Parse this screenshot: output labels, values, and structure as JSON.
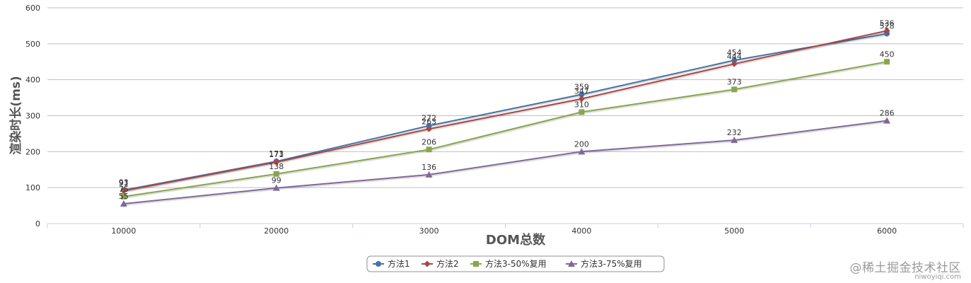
{
  "chart_data": {
    "type": "line",
    "xlabel": "DOM总数",
    "ylabel": "渲染时长(ms)",
    "categories": [
      "10000",
      "20000",
      "3000",
      "4000",
      "5000",
      "6000"
    ],
    "ylim": [
      0,
      600
    ],
    "yticks": [
      0,
      100,
      200,
      300,
      400,
      500,
      600
    ],
    "grid": true,
    "legend_position": "bottom-center",
    "series": [
      {
        "name": "方法1",
        "color": "#4572A7",
        "marker": "circle",
        "values": [
          93,
          173,
          272,
          359,
          454,
          528
        ]
      },
      {
        "name": "方法2",
        "color": "#AA4643",
        "marker": "diamond",
        "values": [
          91,
          171,
          263,
          347,
          444,
          536
        ]
      },
      {
        "name": "方法3-50%复用",
        "color": "#89A54E",
        "marker": "square",
        "values": [
          75,
          138,
          206,
          310,
          373,
          450
        ]
      },
      {
        "name": "方法3-75%复用",
        "color": "#80699B",
        "marker": "triangle",
        "values": [
          55,
          99,
          136,
          200,
          232,
          286
        ]
      }
    ]
  },
  "watermark": {
    "text": "@稀土掘金技术社区",
    "subtext": "niwoyiqi.com"
  }
}
